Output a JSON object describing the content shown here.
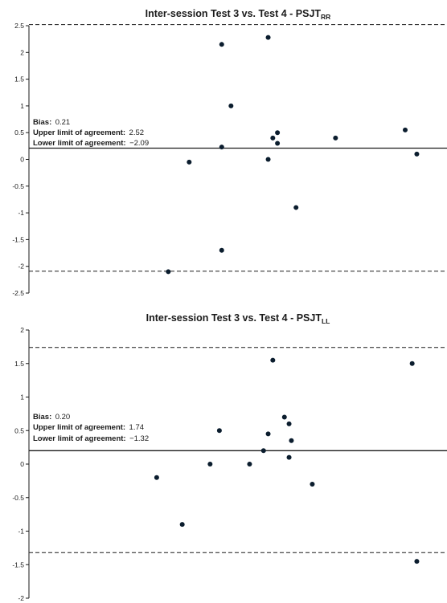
{
  "chart_data": [
    {
      "type": "scatter",
      "title": "Inter-session Test 3 vs. Test 4 - PSJT",
      "title_subscript": "RR",
      "ylim": [
        -2.5,
        2.5
      ],
      "yticks": [
        2.5,
        2,
        1.5,
        1,
        0.5,
        0,
        -0.5,
        -1,
        -1.5,
        -2,
        -2.5
      ],
      "ytick_labels": [
        "2.5",
        "2",
        "1.5",
        "1",
        "0.5",
        "0",
        "-0.5",
        "-1",
        "-1.5",
        "-2",
        "-2.5"
      ],
      "xlim": [
        -3,
        15
      ],
      "grid": false,
      "points": [
        {
          "x": 7.3,
          "y": 2.28
        },
        {
          "x": 5.3,
          "y": 2.15
        },
        {
          "x": 5.7,
          "y": 1.0
        },
        {
          "x": 13.2,
          "y": 0.55
        },
        {
          "x": 7.7,
          "y": 0.5
        },
        {
          "x": 7.5,
          "y": 0.4
        },
        {
          "x": 10.2,
          "y": 0.4
        },
        {
          "x": 7.7,
          "y": 0.3
        },
        {
          "x": 5.3,
          "y": 0.23
        },
        {
          "x": 13.7,
          "y": 0.1
        },
        {
          "x": 7.3,
          "y": 0.0
        },
        {
          "x": 3.9,
          "y": -0.05
        },
        {
          "x": 8.5,
          "y": -0.9
        },
        {
          "x": 5.3,
          "y": -1.7
        },
        {
          "x": 3.0,
          "y": -2.1
        }
      ],
      "bias": 0.21,
      "upper_loa": 2.52,
      "lower_loa": -2.09,
      "annotations": [
        {
          "label": "Bias:",
          "value": "0.21"
        },
        {
          "label": "Upper limit of agreement:",
          "value": "2.52"
        },
        {
          "label": "Lower limit of agreement:",
          "value": "−2.09"
        }
      ]
    },
    {
      "type": "scatter",
      "title": "Inter-session Test 3 vs. Test 4 - PSJT",
      "title_subscript": "LL",
      "ylim": [
        -2,
        2
      ],
      "yticks": [
        2,
        1.5,
        1,
        0.5,
        0,
        -0.5,
        -1,
        -1.5,
        -2
      ],
      "ytick_labels": [
        "2",
        "1.5",
        "1",
        "0.5",
        "0",
        "-0.5",
        "-1",
        "-1.5",
        "-2"
      ],
      "xlim": [
        -3,
        15
      ],
      "grid": false,
      "points": [
        {
          "x": 7.5,
          "y": 1.55
        },
        {
          "x": 13.5,
          "y": 1.5
        },
        {
          "x": 8.0,
          "y": 0.7
        },
        {
          "x": 8.2,
          "y": 0.6
        },
        {
          "x": 5.2,
          "y": 0.5
        },
        {
          "x": 7.3,
          "y": 0.45
        },
        {
          "x": 8.3,
          "y": 0.35
        },
        {
          "x": 7.1,
          "y": 0.2
        },
        {
          "x": 8.2,
          "y": 0.1
        },
        {
          "x": 4.8,
          "y": 0.0
        },
        {
          "x": 6.5,
          "y": 0.0
        },
        {
          "x": 2.5,
          "y": -0.2
        },
        {
          "x": 9.2,
          "y": -0.3
        },
        {
          "x": 3.6,
          "y": -0.9
        },
        {
          "x": 13.7,
          "y": -1.45
        }
      ],
      "bias": 0.2,
      "upper_loa": 1.74,
      "lower_loa": -1.32,
      "annotations": [
        {
          "label": "Bias:",
          "value": "0.20"
        },
        {
          "label": "Upper limit of agreement:",
          "value": "1.74"
        },
        {
          "label": "Lower limit of agreement:",
          "value": "−1.32"
        }
      ]
    }
  ],
  "colors": {
    "axis": "#1a1a1a",
    "point": "#0b1d2e",
    "line": "#1a1a1a"
  }
}
